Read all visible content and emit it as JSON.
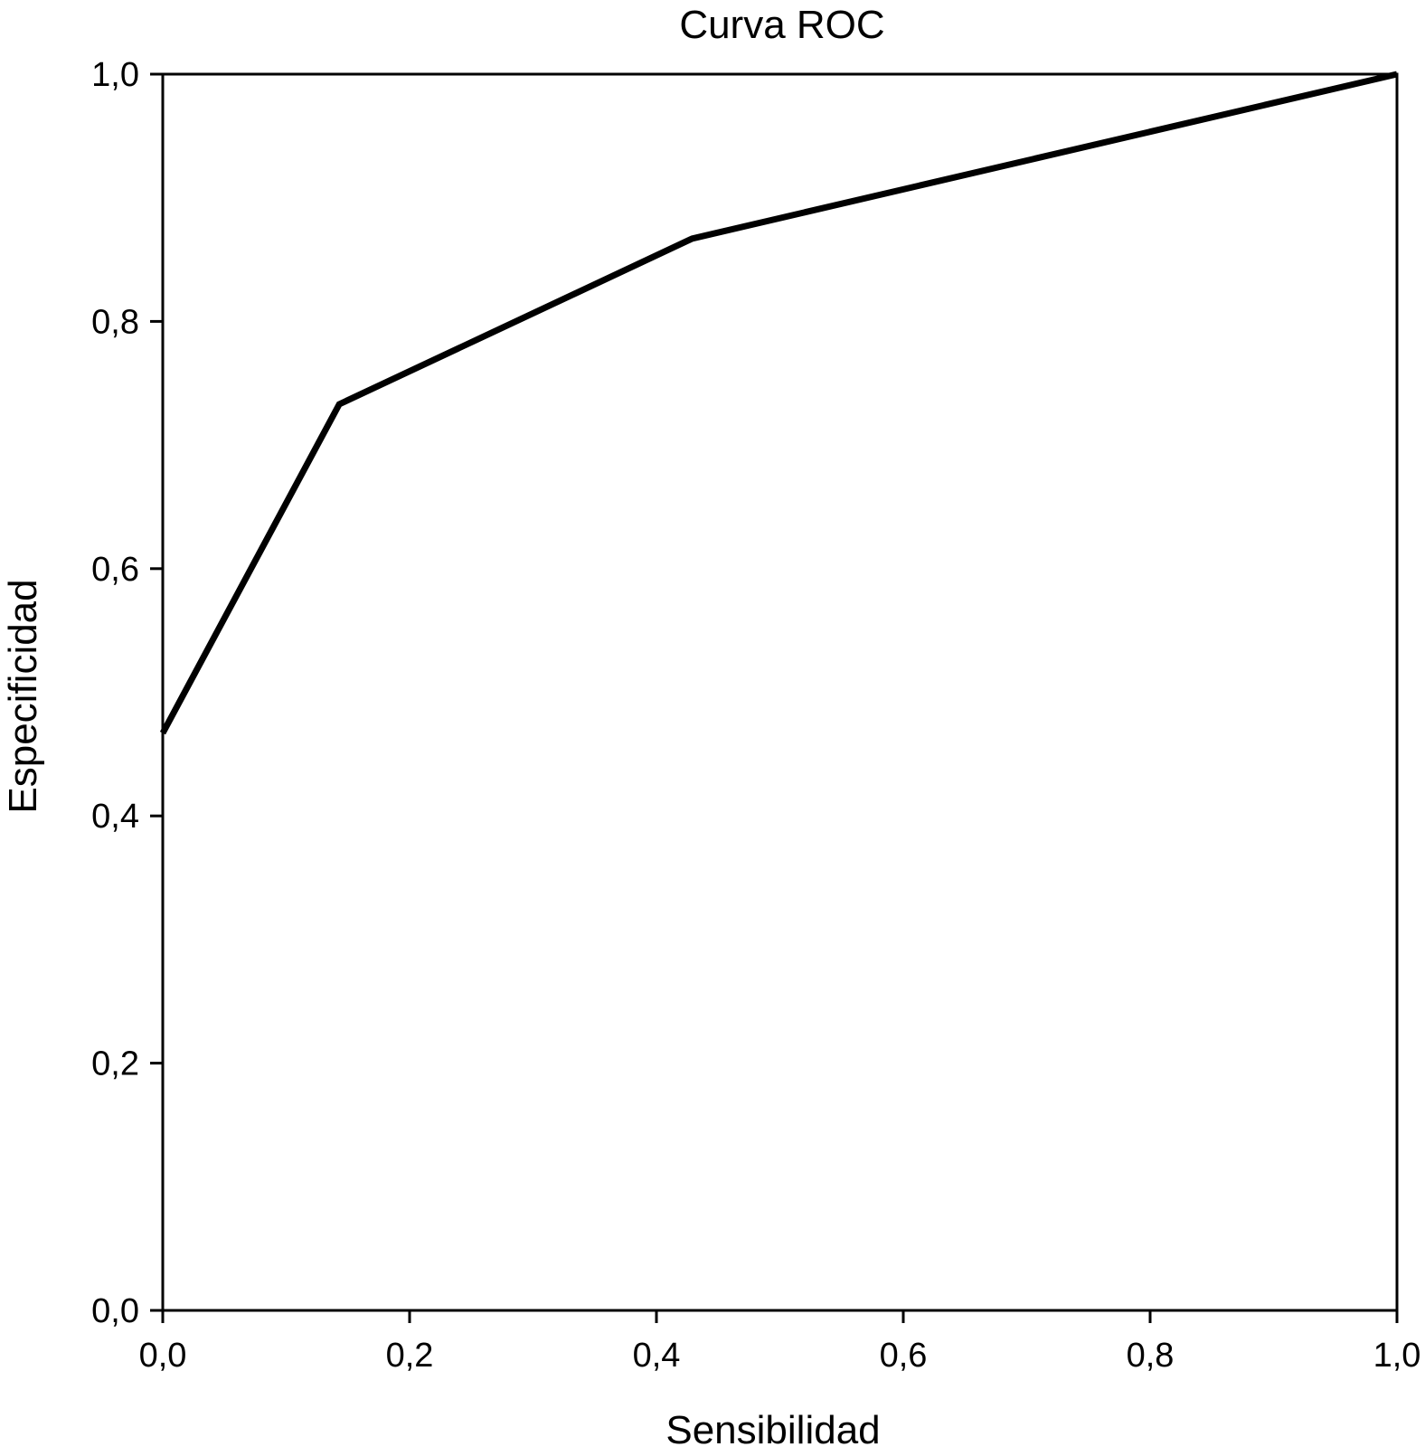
{
  "chart_data": {
    "type": "line",
    "title": "Curva ROC",
    "xlabel": "Sensibilidad",
    "ylabel": "Especificidad",
    "xlim": [
      0,
      1
    ],
    "ylim": [
      0,
      1
    ],
    "x_ticks": [
      "0,0",
      "0,2",
      "0,4",
      "0,6",
      "0,8",
      "1,0"
    ],
    "y_ticks": [
      "0,0",
      "0,2",
      "0,4",
      "0,6",
      "0,8",
      "1,0"
    ],
    "grid": false,
    "series": [
      {
        "x": [
          0.0,
          0.143,
          0.429,
          1.0
        ],
        "y": [
          0.467,
          0.733,
          0.867,
          1.0
        ]
      }
    ],
    "colors": {
      "line": "#000000"
    }
  }
}
